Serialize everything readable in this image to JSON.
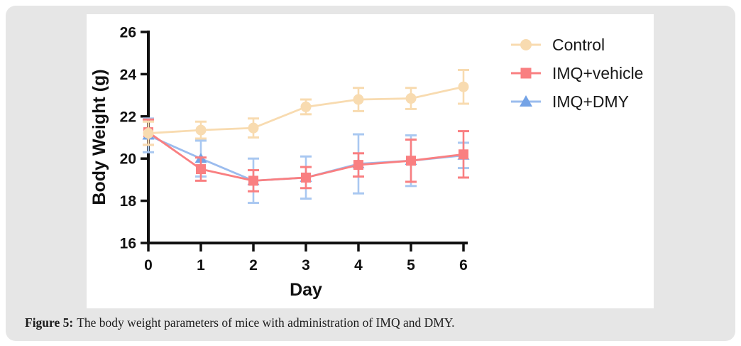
{
  "figure": {
    "caption_label": "Figure 5:",
    "caption_text": "The body weight parameters of mice with administration of IMQ and DMY."
  },
  "colors": {
    "background": "#E6E6E6",
    "panel": "#FFFFFF",
    "axis": "#111111",
    "control": "#F8DBB0",
    "imq_vehicle": "#F97F81",
    "imq_dmy_marker": "#74A3E6",
    "imq_dmy_line": "#9BBCEE",
    "imq_dmy_error": "#A9C8F1"
  },
  "chart_data": {
    "type": "line",
    "title": "",
    "xlabel": "Day",
    "ylabel": "Body Weight (g)",
    "x": [
      0,
      1,
      2,
      3,
      4,
      5,
      6
    ],
    "xlim": [
      0,
      6
    ],
    "ylim": [
      16,
      26
    ],
    "yticks": [
      16,
      18,
      20,
      22,
      24,
      26
    ],
    "grid": false,
    "error_bars": true,
    "legend_position": "top-right",
    "series": [
      {
        "name": "Control",
        "marker": "circle",
        "color": "#F8DBB0",
        "line_color": "#F8DBB0",
        "error_color": "#F8DBB0",
        "values": [
          21.2,
          21.35,
          21.45,
          22.45,
          22.8,
          22.85,
          23.4
        ],
        "errors": [
          0.55,
          0.4,
          0.45,
          0.35,
          0.55,
          0.5,
          0.8
        ]
      },
      {
        "name": "IMQ+vehicle",
        "marker": "square",
        "color": "#F97F81",
        "line_color": "#F97F81",
        "error_color": "#F97F81",
        "values": [
          21.25,
          19.5,
          18.95,
          19.1,
          19.7,
          19.9,
          20.2
        ],
        "errors": [
          0.6,
          0.55,
          0.5,
          0.5,
          0.55,
          1.0,
          1.1
        ]
      },
      {
        "name": "IMQ+DMY",
        "marker": "triangle",
        "color": "#74A3E6",
        "line_color": "#9BBCEE",
        "error_color": "#A9C8F1",
        "values": [
          21.1,
          20.0,
          18.95,
          19.1,
          19.75,
          19.9,
          20.15
        ],
        "errors": [
          0.8,
          0.85,
          1.05,
          1.0,
          1.4,
          1.2,
          0.6
        ]
      }
    ],
    "draw_order": [
      2,
      1,
      0
    ]
  }
}
